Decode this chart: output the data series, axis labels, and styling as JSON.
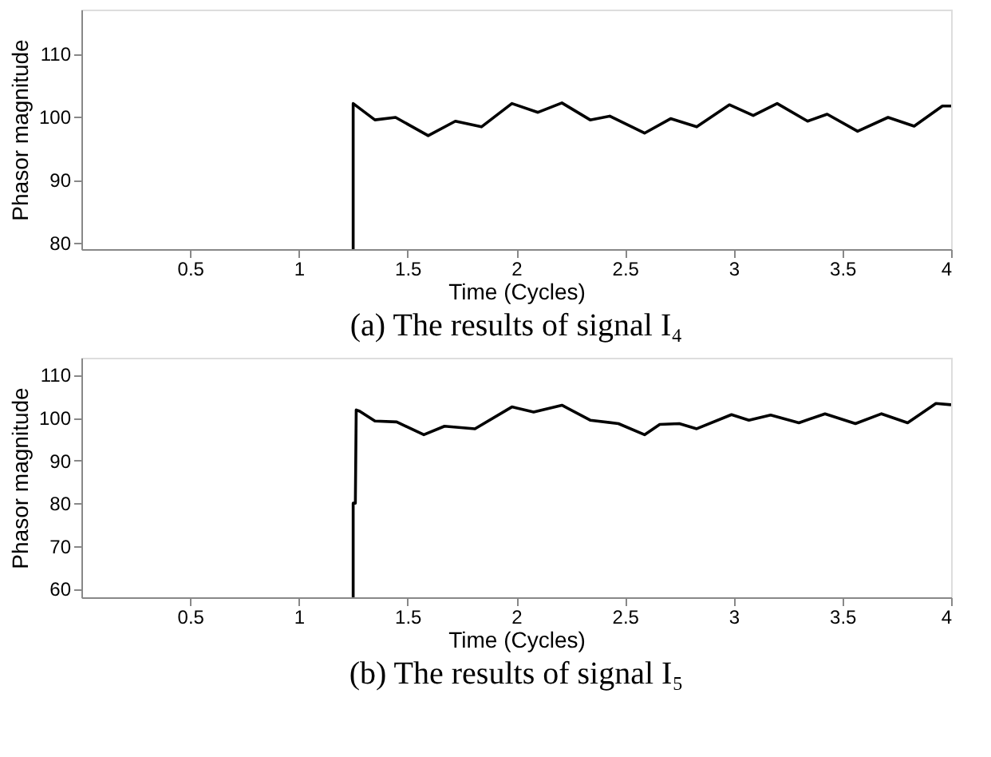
{
  "chart_data": [
    {
      "type": "line",
      "title": "(a) The results of signal I₄",
      "xlabel": "Time (Cycles)",
      "ylabel": "Phasor magnitude",
      "xlim": [
        0,
        4
      ],
      "ylim": [
        79,
        117
      ],
      "xticks": [
        0.5,
        1,
        1.5,
        2,
        2.5,
        3,
        3.5,
        4
      ],
      "yticks": [
        80,
        90,
        100,
        110
      ],
      "grid": false,
      "series": [
        {
          "color": "#000000",
          "x": [
            1.25,
            1.25,
            1.35,
            1.445,
            1.595,
            1.72,
            1.84,
            1.98,
            2.1,
            2.21,
            2.34,
            2.43,
            2.59,
            2.71,
            2.83,
            2.98,
            3.09,
            3.2,
            3.34,
            3.43,
            3.57,
            3.71,
            3.83,
            3.96,
            4.0
          ],
          "values": [
            79,
            102.1,
            99.5,
            99.9,
            97.0,
            99.3,
            98.4,
            102.1,
            100.7,
            102.2,
            99.5,
            100.1,
            97.4,
            99.7,
            98.4,
            101.9,
            100.2,
            102.1,
            99.3,
            100.4,
            97.7,
            99.9,
            98.5,
            101.7,
            101.7
          ]
        }
      ]
    },
    {
      "type": "line",
      "title": "(b) The results of signal I₅",
      "xlabel": "Time (Cycles)",
      "ylabel": "Phasor magnitude",
      "xlim": [
        0,
        4
      ],
      "ylim": [
        58,
        114
      ],
      "xticks": [
        0.5,
        1,
        1.5,
        2,
        2.5,
        3,
        3.5,
        4
      ],
      "yticks": [
        60,
        70,
        80,
        90,
        100,
        110
      ],
      "grid": false,
      "series": [
        {
          "color": "#000000",
          "x": [
            1.25,
            1.25,
            1.26,
            1.264,
            1.28,
            1.35,
            1.45,
            1.575,
            1.67,
            1.81,
            1.98,
            2.08,
            2.21,
            2.34,
            2.47,
            2.59,
            2.66,
            2.75,
            2.83,
            2.99,
            3.07,
            3.17,
            3.3,
            3.42,
            3.56,
            3.68,
            3.8,
            3.93,
            4.0
          ],
          "values": [
            58,
            80,
            80,
            101.8,
            101.5,
            99.2,
            99.0,
            96.0,
            98.0,
            97.4,
            102.5,
            101.3,
            102.9,
            99.4,
            98.6,
            96.0,
            98.4,
            98.6,
            97.4,
            100.7,
            99.4,
            100.6,
            98.8,
            100.9,
            98.6,
            100.9,
            98.8,
            103.3,
            103.0
          ]
        }
      ]
    }
  ]
}
